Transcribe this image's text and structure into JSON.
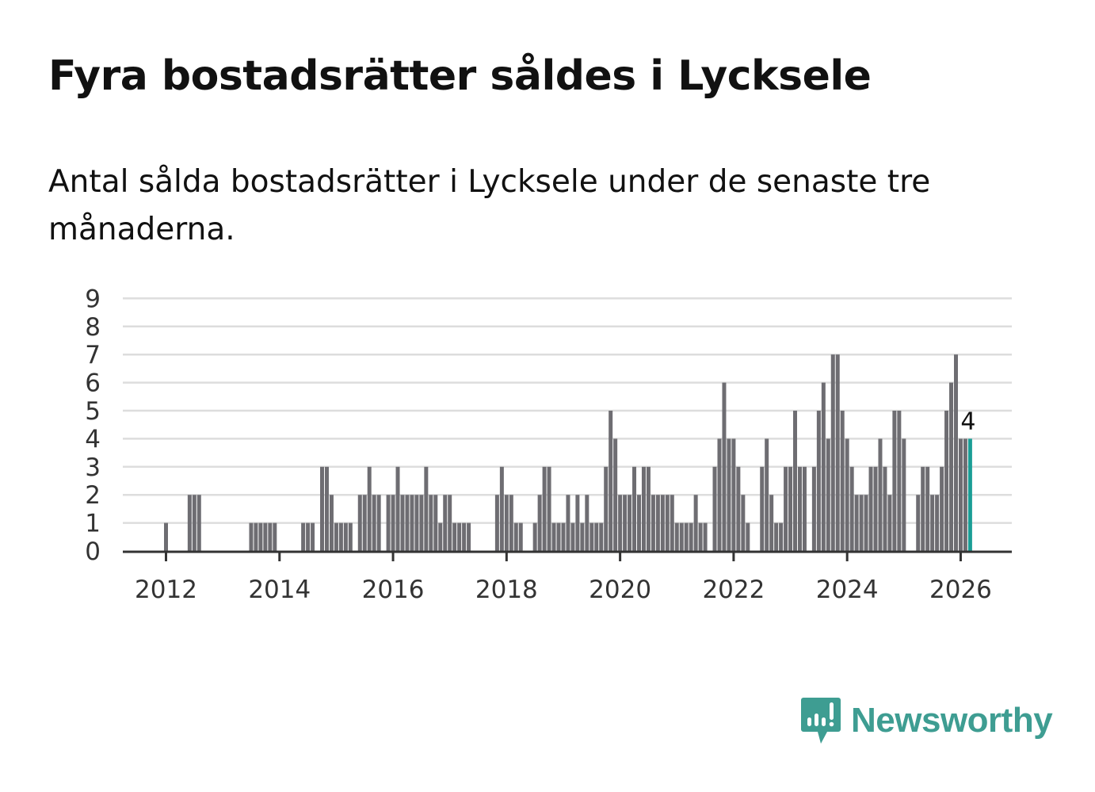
{
  "title": "Fyra bostadsrätter såldes i Lycksele",
  "subtitle": "Antal sålda bostadsrätter i Lycksele under de senaste tre månaderna.",
  "brand": {
    "name": "Newsworthy",
    "color": "#3e9d92"
  },
  "colors": {
    "bar": "#6e6d72",
    "highlight": "#1a9e96",
    "grid": "#dddddd",
    "axis": "#333333"
  },
  "chart_data": {
    "type": "bar",
    "title": "Antal sålda bostadsrätter i Lycksele",
    "xlabel": "",
    "ylabel": "",
    "frequency": "monthly",
    "start_month": "2012-01",
    "end_month": "2026-03",
    "values": [
      1,
      0,
      0,
      0,
      0,
      2,
      2,
      2,
      0,
      0,
      0,
      0,
      0,
      0,
      0,
      0,
      0,
      0,
      1,
      1,
      1,
      1,
      1,
      1,
      0,
      0,
      0,
      0,
      0,
      1,
      1,
      1,
      0,
      3,
      3,
      2,
      1,
      1,
      1,
      1,
      0,
      2,
      2,
      3,
      2,
      2,
      0,
      2,
      2,
      3,
      2,
      2,
      2,
      2,
      2,
      3,
      2,
      2,
      1,
      2,
      2,
      1,
      1,
      1,
      1,
      0,
      0,
      0,
      0,
      0,
      2,
      3,
      2,
      2,
      1,
      1,
      0,
      0,
      1,
      2,
      3,
      3,
      1,
      1,
      1,
      2,
      1,
      2,
      1,
      2,
      1,
      1,
      1,
      3,
      5,
      4,
      2,
      2,
      2,
      3,
      2,
      3,
      3,
      2,
      2,
      2,
      2,
      2,
      1,
      1,
      1,
      1,
      2,
      1,
      1,
      0,
      3,
      4,
      6,
      4,
      4,
      3,
      2,
      1,
      0,
      0,
      3,
      4,
      2,
      1,
      1,
      3,
      3,
      5,
      3,
      3,
      0,
      3,
      5,
      6,
      4,
      7,
      7,
      5,
      4,
      3,
      2,
      2,
      2,
      3,
      3,
      4,
      3,
      2,
      5,
      5,
      4,
      0,
      0,
      2,
      3,
      3,
      2,
      2,
      3,
      5,
      6,
      7,
      4,
      4,
      4
    ],
    "highlight_last": true,
    "last_label": "4",
    "ylim": [
      0,
      9
    ],
    "yticks": [
      "0",
      "1",
      "2",
      "3",
      "4",
      "5",
      "6",
      "7",
      "8",
      "9"
    ],
    "xticks": [
      "2012",
      "2014",
      "2016",
      "2018",
      "2020",
      "2022",
      "2024",
      "2026"
    ],
    "grid": true
  }
}
